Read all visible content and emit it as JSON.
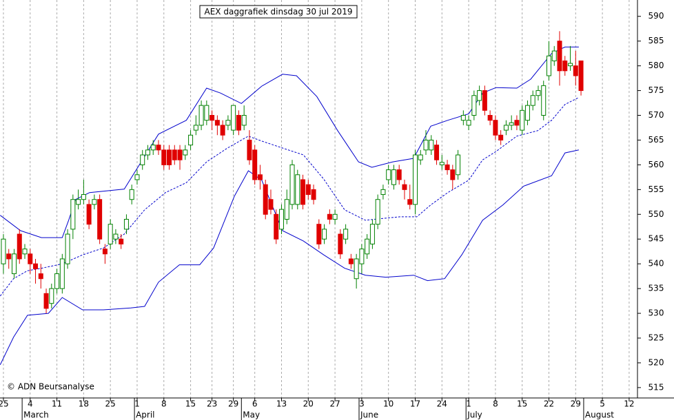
{
  "chart_data": {
    "type": "candlestick",
    "title": "AEX daggrafiek dinsdag 30 jul 2019",
    "credit": "© ADN Beursanalyse",
    "up_color": "#008000",
    "down_color": "#e00000",
    "x": [
      0,
      1,
      2,
      3,
      4,
      5,
      6,
      7,
      8,
      9,
      10,
      11,
      12,
      13,
      14,
      15,
      16,
      17,
      18,
      19,
      20,
      21,
      22,
      23,
      24,
      25,
      26,
      27,
      28,
      29,
      30,
      31,
      32,
      33,
      34,
      35,
      36,
      37,
      38,
      39,
      40,
      41,
      42,
      43,
      44,
      45,
      46,
      47,
      48,
      49,
      50,
      51,
      52,
      53,
      54,
      55,
      56,
      57,
      58,
      59,
      60,
      61,
      62,
      63,
      64,
      65,
      66,
      67,
      68,
      69,
      70,
      71,
      72,
      73,
      74,
      75,
      76,
      77,
      78,
      79,
      80,
      81,
      82,
      83,
      84,
      85,
      86,
      87,
      88,
      89,
      90,
      91,
      92,
      93,
      94,
      95,
      96,
      97,
      98,
      99,
      100,
      101,
      102,
      103,
      104,
      105,
      106,
      107,
      108
    ],
    "open": [
      540,
      542,
      538,
      546,
      542,
      542,
      540,
      538,
      534,
      532,
      535,
      535,
      540,
      547,
      552,
      553,
      552,
      552,
      553,
      543,
      544,
      545,
      545,
      547,
      553,
      557,
      560,
      562,
      563,
      564,
      563,
      563,
      563,
      563,
      562,
      564,
      567,
      568,
      569,
      570,
      569,
      568,
      568,
      567,
      570,
      568,
      565,
      563,
      558,
      556,
      553,
      550,
      547,
      549,
      552,
      552,
      557,
      556,
      555,
      548,
      545,
      550,
      549,
      546,
      545,
      541,
      537,
      540,
      542,
      544,
      548,
      554,
      557,
      556,
      559,
      556,
      553,
      552,
      561,
      563,
      563,
      564,
      560,
      560,
      559,
      558,
      569,
      568,
      570,
      573,
      575,
      570,
      569,
      566,
      567,
      568,
      569,
      567,
      569,
      572,
      574,
      570,
      578,
      581,
      585,
      581,
      580,
      580,
      581
    ],
    "high": [
      546,
      543,
      543,
      547,
      544,
      543,
      541,
      540,
      535,
      536,
      539,
      542,
      547,
      554,
      555,
      557,
      553,
      554,
      554,
      544,
      549,
      547,
      546,
      550,
      556,
      559,
      563,
      564,
      565,
      565,
      564,
      564,
      564,
      564,
      564,
      567,
      570,
      573,
      573,
      571,
      570,
      569,
      570,
      572,
      571,
      572,
      567,
      564,
      560,
      557,
      555,
      551,
      552,
      555,
      561,
      559,
      558,
      557,
      556,
      549,
      548,
      551,
      551,
      547,
      548,
      542,
      542,
      544,
      546,
      549,
      554,
      556,
      560,
      560,
      560,
      557,
      556,
      563,
      563,
      567,
      566,
      565,
      562,
      561,
      560,
      563,
      571,
      570,
      575,
      576,
      576,
      571,
      570,
      567,
      569,
      570,
      570,
      572,
      573,
      575,
      576,
      577,
      585,
      584,
      587,
      582,
      584,
      583,
      581
    ],
    "low": [
      538,
      539,
      537,
      540,
      541,
      538,
      536,
      535,
      530,
      531,
      534,
      534,
      539,
      545,
      551,
      552,
      547,
      551,
      544,
      540,
      543,
      544,
      543,
      546,
      552,
      556,
      559,
      561,
      562,
      562,
      559,
      559,
      560,
      559,
      561,
      563,
      566,
      567,
      568,
      567,
      566,
      565,
      567,
      566,
      566,
      567,
      560,
      556,
      555,
      549,
      550,
      544,
      546,
      548,
      551,
      551,
      551,
      553,
      552,
      543,
      544,
      548,
      548,
      541,
      544,
      539,
      535,
      538,
      541,
      543,
      547,
      553,
      556,
      555,
      556,
      553,
      551,
      550,
      560,
      562,
      562,
      560,
      559,
      558,
      555,
      557,
      568,
      567,
      569,
      572,
      570,
      568,
      565,
      564,
      566,
      567,
      567,
      566,
      568,
      571,
      573,
      569,
      577,
      580,
      576,
      578,
      579,
      576,
      574
    ],
    "close": [
      545,
      541,
      542,
      541,
      543,
      540,
      539,
      537,
      531,
      535,
      538,
      541,
      546,
      553,
      553,
      554,
      548,
      553,
      545,
      542,
      548,
      546,
      544,
      549,
      555,
      558,
      562,
      563,
      564,
      563,
      560,
      560,
      561,
      561,
      563,
      566,
      568,
      572,
      572,
      569,
      568,
      566,
      569,
      572,
      567,
      570,
      561,
      557,
      557,
      550,
      551,
      545,
      551,
      553,
      560,
      558,
      552,
      554,
      553,
      544,
      547,
      549,
      550,
      542,
      547,
      540,
      541,
      543,
      545,
      548,
      553,
      555,
      559,
      559,
      557,
      555,
      552,
      562,
      562,
      565,
      565,
      561,
      560.5,
      559,
      557,
      562,
      570,
      569,
      574,
      575,
      571,
      569,
      566,
      565,
      568,
      568.5,
      568,
      571,
      572,
      574,
      575,
      576,
      582,
      583,
      579,
      579,
      580.5,
      578,
      575
    ],
    "bands": [
      {
        "style": "solid",
        "color": "#0000cc",
        "x": [
          -0.6,
          3.2,
          7.1,
          11.0,
          12.2,
          13.5,
          16.1,
          22.6,
          29.0,
          34.2,
          38.0,
          40.6,
          44.5,
          48.3,
          52.2,
          54.8,
          58.6,
          62.5,
          66.4,
          68.9,
          72.8,
          76.7,
          79.9,
          83.1,
          87.0,
          89.6,
          92.1,
          96.0,
          98.6,
          102.5,
          105.0,
          107.6
        ],
        "values": [
          549.8,
          546.7,
          545.3,
          545.3,
          548.8,
          553.0,
          554.4,
          555.1,
          566.2,
          569.0,
          575.5,
          574.5,
          572.4,
          575.9,
          578.3,
          578.0,
          573.8,
          566.9,
          560.6,
          559.5,
          560.6,
          561.3,
          567.8,
          569.0,
          570.3,
          574.5,
          575.6,
          575.5,
          577.3,
          582.5,
          583.8,
          583.8
        ]
      },
      {
        "style": "dashed",
        "color": "#0000cc",
        "x": [
          -0.6,
          1.9,
          4.5,
          7.1,
          11.0,
          14.8,
          18.7,
          22.6,
          26.4,
          30.3,
          34.2,
          38.0,
          41.9,
          45.8,
          48.3,
          52.2,
          56.1,
          59.9,
          63.8,
          67.7,
          70.2,
          74.1,
          77.3,
          79.9,
          83.1,
          87.0,
          89.6,
          92.1,
          96.0,
          99.9,
          102.5,
          105.0,
          107.6
        ],
        "values": [
          533.5,
          537.0,
          538.6,
          539.1,
          540.0,
          541.8,
          543.2,
          546.0,
          550.9,
          554.4,
          556.4,
          560.6,
          563.4,
          565.8,
          564.8,
          563.4,
          562.0,
          557.1,
          550.9,
          548.8,
          549.1,
          549.5,
          549.5,
          551.9,
          554.4,
          556.9,
          561.0,
          562.7,
          565.8,
          566.9,
          569.0,
          572.2,
          573.6
        ]
      },
      {
        "style": "solid",
        "color": "#0000cc",
        "x": [
          -0.6,
          1.9,
          4.5,
          8.4,
          11.0,
          14.8,
          18.7,
          23.8,
          26.4,
          29.0,
          32.9,
          36.7,
          39.3,
          43.2,
          45.8,
          48.3,
          52.2,
          56.1,
          59.9,
          63.8,
          67.7,
          71.5,
          76.7,
          79.3,
          82.5,
          85.7,
          89.6,
          93.4,
          97.3,
          102.5,
          105.0,
          107.6
        ],
        "values": [
          519.6,
          525.2,
          529.6,
          530.0,
          533.2,
          530.7,
          530.7,
          531.1,
          531.4,
          536.3,
          539.8,
          539.8,
          543.2,
          553.7,
          558.8,
          556.9,
          546.7,
          544.6,
          541.8,
          539.1,
          537.7,
          537.3,
          537.7,
          536.6,
          537.0,
          541.8,
          548.8,
          551.9,
          555.7,
          557.8,
          562.4,
          563.0
        ]
      }
    ],
    "xlim": [
      -0.64,
      118.56
    ],
    "ylim": [
      512.9,
      593.3
    ],
    "yticks": [
      515,
      520,
      525,
      530,
      535,
      540,
      545,
      550,
      555,
      560,
      565,
      570,
      575,
      580,
      585,
      590
    ],
    "xticks": [
      {
        "value": 0,
        "label": "25"
      },
      {
        "value": 5,
        "label": "4"
      },
      {
        "value": 10,
        "label": "11"
      },
      {
        "value": 15,
        "label": "18"
      },
      {
        "value": 20,
        "label": "25"
      },
      {
        "value": 25,
        "label": "1"
      },
      {
        "value": 30,
        "label": "8"
      },
      {
        "value": 35,
        "label": "15"
      },
      {
        "value": 39,
        "label": "23"
      },
      {
        "value": 43,
        "label": "29"
      },
      {
        "value": 47,
        "label": "6"
      },
      {
        "value": 52,
        "label": "13"
      },
      {
        "value": 57,
        "label": "20"
      },
      {
        "value": 62,
        "label": "27"
      },
      {
        "value": 67,
        "label": "3"
      },
      {
        "value": 72,
        "label": "10"
      },
      {
        "value": 77,
        "label": "17"
      },
      {
        "value": 82,
        "label": "24"
      },
      {
        "value": 87,
        "label": "1"
      },
      {
        "value": 92,
        "label": "8"
      },
      {
        "value": 97,
        "label": "15"
      },
      {
        "value": 102,
        "label": "22"
      },
      {
        "value": 107,
        "label": "29"
      },
      {
        "value": 112,
        "label": "5"
      },
      {
        "value": 117,
        "label": "12"
      }
    ],
    "month_ticks": [
      {
        "value": 3.5,
        "label": "March"
      },
      {
        "value": 24.5,
        "label": "April"
      },
      {
        "value": 44.5,
        "label": "May"
      },
      {
        "value": 66.5,
        "label": "June"
      },
      {
        "value": 86.5,
        "label": "July"
      },
      {
        "value": 108.5,
        "label": "August"
      }
    ],
    "grid": true
  }
}
